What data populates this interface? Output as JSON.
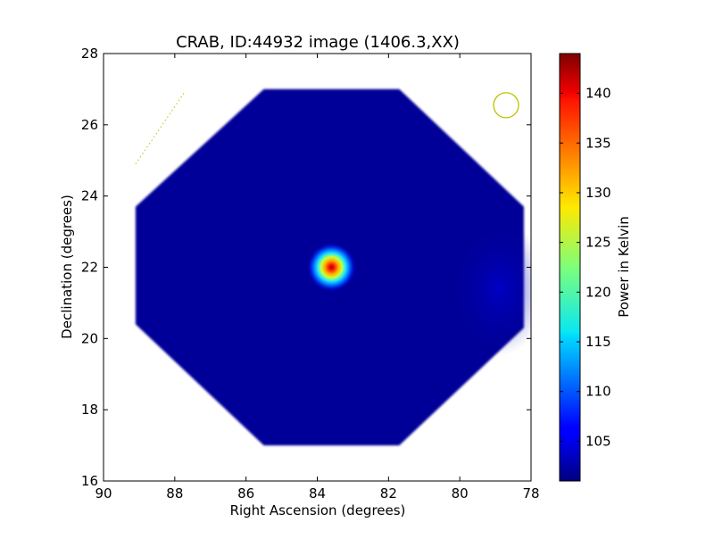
{
  "chart_data": {
    "type": "heatmap",
    "title": "CRAB, ID:44932 image (1406.3,XX)",
    "xlabel": "Right Ascension (degrees)",
    "ylabel": "Declination (degrees)",
    "xlim": [
      90,
      78
    ],
    "ylim": [
      16,
      28
    ],
    "x_ticks": [
      90,
      88,
      86,
      84,
      82,
      80,
      78
    ],
    "y_ticks": [
      16,
      18,
      20,
      22,
      24,
      26,
      28
    ],
    "colorbar": {
      "label": "Power in Kelvin",
      "range": [
        101,
        144
      ],
      "ticks": [
        105,
        110,
        115,
        120,
        125,
        130,
        135,
        140
      ],
      "colormap": "jet"
    },
    "background_level": 102,
    "map_footprint": {
      "shape": "octagon",
      "vertices": [
        [
          85.5,
          27.0
        ],
        [
          81.7,
          27.0
        ],
        [
          78.2,
          23.7
        ],
        [
          78.2,
          20.3
        ],
        [
          81.7,
          17.0
        ],
        [
          85.5,
          17.0
        ],
        [
          89.1,
          20.4
        ],
        [
          89.1,
          23.7
        ]
      ]
    },
    "sources": [
      {
        "name": "CRAB",
        "ra": 83.6,
        "dec": 22.0,
        "peak": 144,
        "fwhm_deg": 0.7
      }
    ],
    "beam_marker": {
      "ra": 78.7,
      "dec": 26.55,
      "radius_deg": 0.35,
      "color": "#bfbf00"
    },
    "scan_track": {
      "from": [
        89.1,
        24.9
      ],
      "to": [
        87.7,
        26.95
      ],
      "color": "#bfbf00"
    }
  }
}
